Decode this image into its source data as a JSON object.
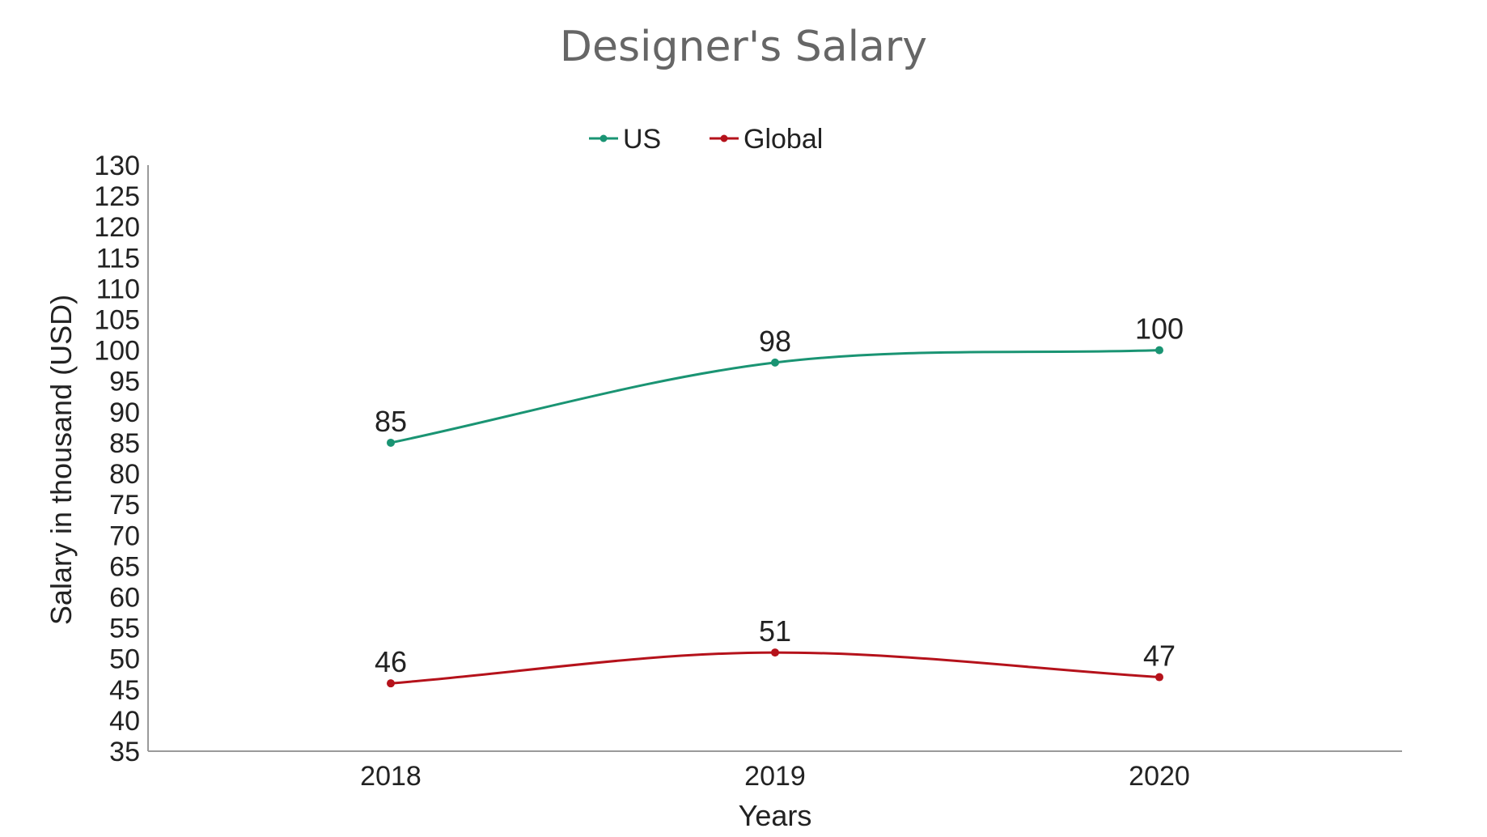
{
  "chart_data": {
    "type": "line",
    "title": "Designer's Salary",
    "xlabel": "Years",
    "ylabel": "Salary in thousand (USD)",
    "categories": [
      "2018",
      "2019",
      "2020"
    ],
    "ylim": [
      35,
      130
    ],
    "yticks": [
      35,
      40,
      45,
      50,
      55,
      60,
      65,
      70,
      75,
      80,
      85,
      90,
      95,
      100,
      105,
      110,
      115,
      120,
      125,
      130
    ],
    "grid": false,
    "smooth": true,
    "legend_position": "top-center",
    "series": [
      {
        "name": "US",
        "color": "#1a9473",
        "values": [
          85,
          98,
          100
        ]
      },
      {
        "name": "Global",
        "color": "#b5121b",
        "values": [
          46,
          51,
          47
        ]
      }
    ]
  }
}
